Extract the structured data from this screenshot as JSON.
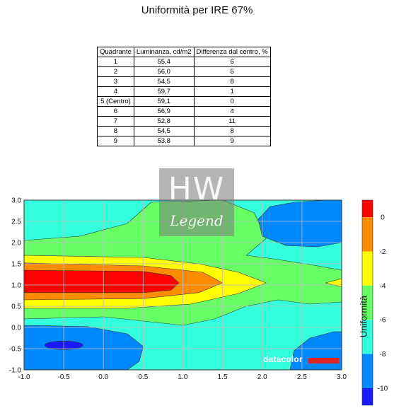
{
  "title": "Uniformità per IRE 67%",
  "table": {
    "headers": [
      "Quadrante",
      "Luminanza, cd/m2",
      "Differenza dal centro, %"
    ],
    "rows": [
      [
        "1",
        "55,4",
        "6"
      ],
      [
        "2",
        "56,0",
        "5"
      ],
      [
        "3",
        "54,5",
        "8"
      ],
      [
        "4",
        "59,7",
        "1"
      ],
      [
        "5 (Centro)",
        "59,1",
        "0"
      ],
      [
        "6",
        "56,9",
        "4"
      ],
      [
        "7",
        "52,8",
        "11"
      ],
      [
        "8",
        "54,5",
        "8"
      ],
      [
        "9",
        "53,8",
        "9"
      ]
    ]
  },
  "watermark": {
    "main": "HW",
    "sub": "Legend"
  },
  "logo": {
    "text": "datacolor",
    "bar_color": "#e02323"
  },
  "chart_data": {
    "type": "heatmap",
    "title": "",
    "xlabel": "",
    "ylabel": "",
    "xlim": [
      -1.0,
      3.0
    ],
    "ylim": [
      -1.0,
      3.0
    ],
    "x_ticks": [
      "-1.0",
      "-0.5",
      "0.0",
      "0.5",
      "1.0",
      "1.5",
      "2.0",
      "2.5",
      "3.0"
    ],
    "y_ticks": [
      "3.0",
      "2.5",
      "2.0",
      "1.5",
      "1.0",
      "0.5",
      "0.0",
      "-0.5",
      "-1.0"
    ],
    "grid": true,
    "colorbar": {
      "label": "Uniformità",
      "ticks": [
        "0",
        "-2",
        "-4",
        "-6",
        "-8",
        "-10"
      ],
      "levels": [
        {
          "from": 0,
          "to": 1,
          "color": "#ff0000"
        },
        {
          "from": -2,
          "to": 0,
          "color": "#ff8c00"
        },
        {
          "from": -4,
          "to": -2,
          "color": "#ffff00"
        },
        {
          "from": -6,
          "to": -4,
          "color": "#66ff66"
        },
        {
          "from": -8,
          "to": -6,
          "color": "#33ffdd"
        },
        {
          "from": -10,
          "to": -8,
          "color": "#0088ff"
        },
        {
          "from": -11,
          "to": -10,
          "color": "#1a1aff"
        }
      ]
    },
    "regions": [
      {
        "level": -7,
        "label": "background"
      },
      {
        "level": -5,
        "label": "upper band"
      },
      {
        "level": -3,
        "label": "middle band"
      },
      {
        "level": -1,
        "label": "orange band"
      },
      {
        "level": 0,
        "label": "center peak"
      },
      {
        "level": -9,
        "label": "lower-left low"
      },
      {
        "level": -11,
        "label": "lower-left minimum"
      },
      {
        "level": -9,
        "label": "upper-right low"
      },
      {
        "level": -9,
        "label": "lower-right low"
      }
    ]
  }
}
